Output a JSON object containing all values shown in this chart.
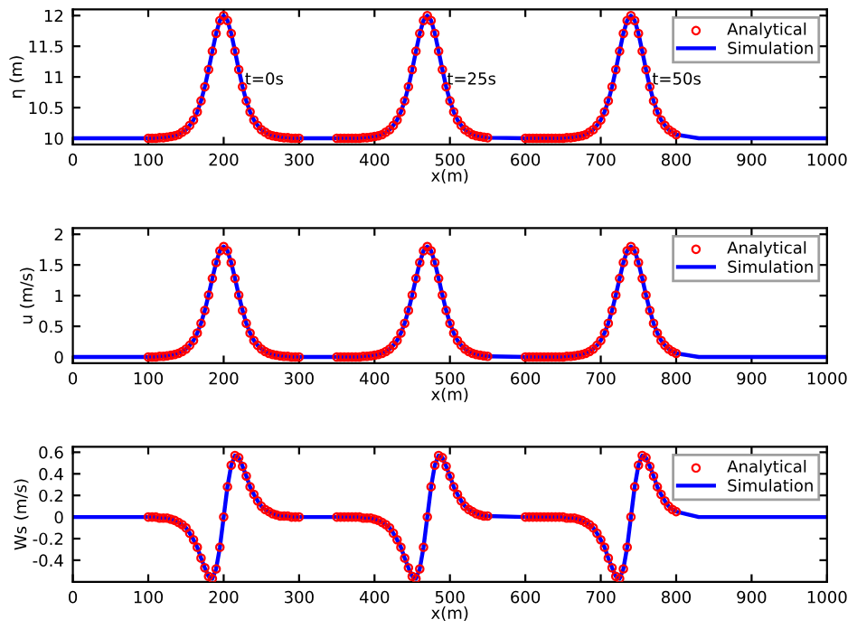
{
  "chart_data": [
    {
      "type": "line",
      "xlabel": "x(m)",
      "ylabel": "η (m)",
      "xlim": [
        0,
        1000
      ],
      "xticks": [
        0,
        100,
        200,
        300,
        400,
        500,
        600,
        700,
        800,
        900,
        1000
      ],
      "ylim": [
        9.9,
        12.1
      ],
      "yticks": [
        10,
        10.5,
        11,
        11.5,
        12
      ],
      "legend": "top right",
      "grid": false,
      "annotations": [
        {
          "text": "t=0s",
          "x": 228,
          "y": 10.95
        },
        {
          "text": "t=25s",
          "x": 496,
          "y": 10.95
        },
        {
          "text": "t=50s",
          "x": 768,
          "y": 10.95
        }
      ],
      "series": [
        {
          "name": "Analytical",
          "type": "scatter",
          "color": "#ff0000",
          "marker": "circle",
          "x": [
            100,
            105,
            110,
            115,
            120,
            125,
            130,
            135,
            140,
            145,
            150,
            155,
            160,
            165,
            170,
            175,
            180,
            185,
            190,
            195,
            200,
            205,
            210,
            215,
            220,
            225,
            230,
            235,
            240,
            245,
            250,
            255,
            260,
            265,
            270,
            275,
            280,
            285,
            290,
            295,
            300,
            350,
            355,
            360,
            365,
            370,
            375,
            380,
            385,
            390,
            395,
            400,
            405,
            410,
            415,
            420,
            425,
            430,
            435,
            440,
            445,
            450,
            455,
            460,
            465,
            470,
            475,
            480,
            485,
            490,
            495,
            500,
            505,
            510,
            515,
            520,
            525,
            530,
            535,
            540,
            545,
            550,
            600,
            605,
            610,
            615,
            620,
            625,
            630,
            635,
            640,
            645,
            650,
            655,
            660,
            665,
            670,
            675,
            680,
            685,
            690,
            695,
            700,
            705,
            710,
            715,
            720,
            725,
            730,
            735,
            740,
            745,
            750,
            755,
            760,
            765,
            770,
            775,
            780,
            785,
            790,
            795,
            800
          ],
          "values": [
            10.0,
            10.0,
            10.0,
            10.01,
            10.01,
            10.02,
            10.03,
            10.04,
            10.06,
            10.1,
            10.14,
            10.21,
            10.3,
            10.43,
            10.61,
            10.84,
            11.12,
            11.42,
            11.71,
            11.92,
            12.0,
            11.92,
            11.71,
            11.42,
            11.12,
            10.84,
            10.61,
            10.43,
            10.3,
            10.21,
            10.14,
            10.1,
            10.06,
            10.04,
            10.03,
            10.02,
            10.01,
            10.01,
            10.0,
            10.0,
            10.0,
            10.0,
            10.0,
            10.0,
            10.0,
            10.0,
            10.0,
            10.0,
            10.01,
            10.01,
            10.02,
            10.03,
            10.04,
            10.06,
            10.1,
            10.14,
            10.21,
            10.3,
            10.43,
            10.61,
            10.84,
            11.12,
            11.42,
            11.71,
            11.92,
            12.0,
            11.92,
            11.71,
            11.42,
            11.12,
            10.84,
            10.61,
            10.43,
            10.3,
            10.21,
            10.14,
            10.1,
            10.06,
            10.04,
            10.03,
            10.02,
            10.01,
            10.0,
            10.0,
            10.0,
            10.0,
            10.0,
            10.0,
            10.0,
            10.0,
            10.0,
            10.0,
            10.0,
            10.01,
            10.01,
            10.02,
            10.03,
            10.04,
            10.06,
            10.1,
            10.14,
            10.21,
            10.3,
            10.43,
            10.61,
            10.84,
            11.12,
            11.42,
            11.71,
            11.92,
            12.0,
            11.92,
            11.71,
            11.42,
            11.12,
            10.84,
            10.61,
            10.43,
            10.3,
            10.21,
            10.14,
            10.1,
            10.06
          ]
        },
        {
          "name": "Simulation",
          "color": "#0000ff",
          "line_style": "solid",
          "x": [
            0,
            100,
            105,
            110,
            115,
            120,
            125,
            130,
            135,
            140,
            145,
            150,
            155,
            160,
            165,
            170,
            175,
            180,
            185,
            190,
            195,
            200,
            205,
            210,
            215,
            220,
            225,
            230,
            235,
            240,
            245,
            250,
            255,
            260,
            265,
            270,
            275,
            280,
            285,
            290,
            295,
            300,
            350,
            355,
            360,
            365,
            370,
            375,
            380,
            385,
            390,
            395,
            400,
            405,
            410,
            415,
            420,
            425,
            430,
            435,
            440,
            445,
            450,
            455,
            460,
            465,
            470,
            475,
            480,
            485,
            490,
            495,
            500,
            505,
            510,
            515,
            520,
            525,
            530,
            535,
            540,
            545,
            550,
            600,
            605,
            610,
            615,
            620,
            625,
            630,
            635,
            640,
            645,
            650,
            655,
            660,
            665,
            670,
            675,
            680,
            685,
            690,
            695,
            700,
            705,
            710,
            715,
            720,
            725,
            730,
            735,
            740,
            745,
            750,
            755,
            760,
            765,
            770,
            775,
            780,
            785,
            790,
            795,
            800,
            830,
            1000
          ],
          "values": [
            10.0,
            10.0,
            10.0,
            10.0,
            10.01,
            10.01,
            10.02,
            10.03,
            10.04,
            10.06,
            10.1,
            10.14,
            10.21,
            10.3,
            10.43,
            10.61,
            10.84,
            11.12,
            11.42,
            11.71,
            11.92,
            12.0,
            11.92,
            11.71,
            11.42,
            11.12,
            10.84,
            10.61,
            10.43,
            10.3,
            10.21,
            10.14,
            10.1,
            10.06,
            10.04,
            10.03,
            10.02,
            10.01,
            10.01,
            10.0,
            10.0,
            10.0,
            10.0,
            10.0,
            10.0,
            10.0,
            10.0,
            10.0,
            10.0,
            10.01,
            10.01,
            10.02,
            10.03,
            10.04,
            10.06,
            10.1,
            10.14,
            10.21,
            10.3,
            10.43,
            10.61,
            10.84,
            11.12,
            11.42,
            11.71,
            11.92,
            12.0,
            11.92,
            11.71,
            11.42,
            11.12,
            10.84,
            10.61,
            10.43,
            10.3,
            10.21,
            10.14,
            10.1,
            10.06,
            10.04,
            10.03,
            10.02,
            10.01,
            10.0,
            10.0,
            10.0,
            10.0,
            10.0,
            10.0,
            10.0,
            10.0,
            10.0,
            10.0,
            10.0,
            10.01,
            10.01,
            10.02,
            10.03,
            10.04,
            10.06,
            10.1,
            10.14,
            10.21,
            10.3,
            10.43,
            10.61,
            10.84,
            11.12,
            11.42,
            11.71,
            11.92,
            12.0,
            11.92,
            11.71,
            11.42,
            11.12,
            10.84,
            10.61,
            10.43,
            10.3,
            10.21,
            10.14,
            10.1,
            10.06,
            10.0,
            10.0
          ]
        }
      ]
    },
    {
      "type": "line",
      "xlabel": "x(m)",
      "ylabel": "u (m/s)",
      "xlim": [
        0,
        1000
      ],
      "xticks": [
        0,
        100,
        200,
        300,
        400,
        500,
        600,
        700,
        800,
        900,
        1000
      ],
      "ylim": [
        -0.1,
        2.1
      ],
      "yticks": [
        0,
        0.5,
        1,
        1.5,
        2
      ],
      "legend": "top right",
      "grid": false,
      "series": [
        {
          "name": "Analytical",
          "type": "scatter",
          "color": "#ff0000",
          "marker": "circle",
          "x": [
            100,
            105,
            110,
            115,
            120,
            125,
            130,
            135,
            140,
            145,
            150,
            155,
            160,
            165,
            170,
            175,
            180,
            185,
            190,
            195,
            200,
            205,
            210,
            215,
            220,
            225,
            230,
            235,
            240,
            245,
            250,
            255,
            260,
            265,
            270,
            275,
            280,
            285,
            290,
            295,
            300,
            350,
            355,
            360,
            365,
            370,
            375,
            380,
            385,
            390,
            395,
            400,
            405,
            410,
            415,
            420,
            425,
            430,
            435,
            440,
            445,
            450,
            455,
            460,
            465,
            470,
            475,
            480,
            485,
            490,
            495,
            500,
            505,
            510,
            515,
            520,
            525,
            530,
            535,
            540,
            545,
            550,
            600,
            605,
            610,
            615,
            620,
            625,
            630,
            635,
            640,
            645,
            650,
            655,
            660,
            665,
            670,
            675,
            680,
            685,
            690,
            695,
            700,
            705,
            710,
            715,
            720,
            725,
            730,
            735,
            740,
            745,
            750,
            755,
            760,
            765,
            770,
            775,
            780,
            785,
            790,
            795,
            800
          ],
          "values": [
            0,
            0,
            0,
            0.01,
            0.01,
            0.02,
            0.03,
            0.04,
            0.06,
            0.09,
            0.13,
            0.19,
            0.27,
            0.39,
            0.55,
            0.76,
            1.01,
            1.28,
            1.54,
            1.73,
            1.8,
            1.73,
            1.54,
            1.28,
            1.01,
            0.76,
            0.55,
            0.39,
            0.27,
            0.19,
            0.13,
            0.09,
            0.06,
            0.04,
            0.03,
            0.02,
            0.01,
            0.01,
            0,
            0,
            0,
            0,
            0,
            0,
            0,
            0,
            0,
            0,
            0.01,
            0.01,
            0.02,
            0.03,
            0.04,
            0.06,
            0.09,
            0.13,
            0.19,
            0.27,
            0.39,
            0.55,
            0.76,
            1.01,
            1.28,
            1.54,
            1.73,
            1.8,
            1.73,
            1.54,
            1.28,
            1.01,
            0.76,
            0.55,
            0.39,
            0.27,
            0.19,
            0.13,
            0.09,
            0.06,
            0.04,
            0.03,
            0.02,
            0.01,
            0,
            0,
            0,
            0,
            0,
            0,
            0,
            0,
            0,
            0,
            0,
            0.01,
            0.01,
            0.02,
            0.03,
            0.04,
            0.06,
            0.09,
            0.13,
            0.19,
            0.27,
            0.39,
            0.55,
            0.76,
            1.01,
            1.28,
            1.54,
            1.73,
            1.8,
            1.73,
            1.54,
            1.28,
            1.01,
            0.76,
            0.55,
            0.39,
            0.27,
            0.19,
            0.13,
            0.09,
            0.06
          ]
        },
        {
          "name": "Simulation",
          "color": "#0000ff",
          "line_style": "solid",
          "x": [
            0,
            100,
            105,
            110,
            115,
            120,
            125,
            130,
            135,
            140,
            145,
            150,
            155,
            160,
            165,
            170,
            175,
            180,
            185,
            190,
            195,
            200,
            205,
            210,
            215,
            220,
            225,
            230,
            235,
            240,
            245,
            250,
            255,
            260,
            265,
            270,
            275,
            280,
            285,
            290,
            295,
            300,
            350,
            355,
            360,
            365,
            370,
            375,
            380,
            385,
            390,
            395,
            400,
            405,
            410,
            415,
            420,
            425,
            430,
            435,
            440,
            445,
            450,
            455,
            460,
            465,
            470,
            475,
            480,
            485,
            490,
            495,
            500,
            505,
            510,
            515,
            520,
            525,
            530,
            535,
            540,
            545,
            550,
            600,
            605,
            610,
            615,
            620,
            625,
            630,
            635,
            640,
            645,
            650,
            655,
            660,
            665,
            670,
            675,
            680,
            685,
            690,
            695,
            700,
            705,
            710,
            715,
            720,
            725,
            730,
            735,
            740,
            745,
            750,
            755,
            760,
            765,
            770,
            775,
            780,
            785,
            790,
            795,
            800,
            830,
            1000
          ],
          "values": [
            0,
            0,
            0,
            0,
            0.01,
            0.01,
            0.02,
            0.03,
            0.04,
            0.06,
            0.09,
            0.13,
            0.19,
            0.27,
            0.39,
            0.55,
            0.76,
            1.01,
            1.28,
            1.54,
            1.73,
            1.8,
            1.73,
            1.54,
            1.28,
            1.01,
            0.76,
            0.55,
            0.39,
            0.27,
            0.19,
            0.13,
            0.09,
            0.06,
            0.04,
            0.03,
            0.02,
            0.01,
            0.01,
            0,
            0,
            0,
            0,
            0,
            0,
            0,
            0,
            0,
            0,
            0.01,
            0.01,
            0.02,
            0.03,
            0.04,
            0.06,
            0.09,
            0.13,
            0.19,
            0.27,
            0.39,
            0.55,
            0.76,
            1.01,
            1.28,
            1.54,
            1.73,
            1.8,
            1.73,
            1.54,
            1.28,
            1.01,
            0.76,
            0.55,
            0.39,
            0.27,
            0.19,
            0.13,
            0.09,
            0.06,
            0.04,
            0.03,
            0.02,
            0.01,
            0,
            0,
            0,
            0,
            0,
            0,
            0,
            0,
            0,
            0,
            0,
            0.01,
            0.01,
            0.02,
            0.03,
            0.04,
            0.06,
            0.09,
            0.13,
            0.19,
            0.27,
            0.39,
            0.55,
            0.76,
            1.01,
            1.28,
            1.54,
            1.73,
            1.8,
            1.73,
            1.54,
            1.28,
            1.01,
            0.76,
            0.55,
            0.39,
            0.27,
            0.19,
            0.13,
            0.09,
            0.06,
            0,
            0
          ]
        }
      ]
    },
    {
      "type": "line",
      "xlabel": "x(m)",
      "ylabel": "Ws (m/s)",
      "xlim": [
        0,
        1000
      ],
      "xticks": [
        0,
        100,
        200,
        300,
        400,
        500,
        600,
        700,
        800,
        900,
        1000
      ],
      "ylim": [
        -0.6,
        0.65
      ],
      "yticks": [
        -0.4,
        -0.2,
        0,
        0.2,
        0.4,
        0.6
      ],
      "legend": "top right",
      "grid": false,
      "series": [
        {
          "name": "Analytical",
          "type": "scatter",
          "color": "#ff0000",
          "marker": "circle",
          "x": [
            100,
            105,
            110,
            115,
            120,
            125,
            130,
            135,
            140,
            145,
            150,
            155,
            160,
            165,
            170,
            175,
            180,
            185,
            190,
            195,
            200,
            205,
            210,
            215,
            220,
            225,
            230,
            235,
            240,
            245,
            250,
            255,
            260,
            265,
            270,
            275,
            280,
            285,
            290,
            295,
            300,
            350,
            355,
            360,
            365,
            370,
            375,
            380,
            385,
            390,
            395,
            400,
            405,
            410,
            415,
            420,
            425,
            430,
            435,
            440,
            445,
            450,
            455,
            460,
            465,
            470,
            475,
            480,
            485,
            490,
            495,
            500,
            505,
            510,
            515,
            520,
            525,
            530,
            535,
            540,
            545,
            550,
            600,
            605,
            610,
            615,
            620,
            625,
            630,
            635,
            640,
            645,
            650,
            655,
            660,
            665,
            670,
            675,
            680,
            685,
            690,
            695,
            700,
            705,
            710,
            715,
            720,
            725,
            730,
            735,
            740,
            745,
            750,
            755,
            760,
            765,
            770,
            775,
            780,
            785,
            790,
            795,
            800
          ],
          "values": [
            0,
            0,
            0,
            -0.01,
            -0.01,
            -0.01,
            -0.02,
            -0.03,
            -0.05,
            -0.07,
            -0.1,
            -0.15,
            -0.21,
            -0.28,
            -0.38,
            -0.47,
            -0.55,
            -0.57,
            -0.48,
            -0.28,
            0,
            0.28,
            0.48,
            0.57,
            0.55,
            0.47,
            0.38,
            0.28,
            0.21,
            0.15,
            0.1,
            0.07,
            0.05,
            0.03,
            0.02,
            0.01,
            0.01,
            0.01,
            0,
            0,
            0,
            0,
            0,
            0,
            0,
            0,
            0,
            0,
            -0.01,
            -0.01,
            -0.01,
            -0.02,
            -0.03,
            -0.05,
            -0.07,
            -0.1,
            -0.15,
            -0.21,
            -0.28,
            -0.38,
            -0.47,
            -0.55,
            -0.57,
            -0.48,
            -0.28,
            0,
            0.28,
            0.48,
            0.57,
            0.55,
            0.47,
            0.38,
            0.28,
            0.21,
            0.15,
            0.1,
            0.07,
            0.05,
            0.03,
            0.02,
            0.01,
            0.01,
            0,
            0,
            0,
            0,
            0,
            0,
            0,
            0,
            0,
            0,
            0,
            -0.01,
            -0.01,
            -0.01,
            -0.02,
            -0.03,
            -0.05,
            -0.07,
            -0.1,
            -0.15,
            -0.21,
            -0.28,
            -0.38,
            -0.47,
            -0.55,
            -0.57,
            -0.48,
            -0.28,
            0,
            0.28,
            0.48,
            0.57,
            0.55,
            0.47,
            0.38,
            0.28,
            0.21,
            0.15,
            0.1,
            0.07,
            0.05
          ]
        },
        {
          "name": "Simulation",
          "color": "#0000ff",
          "line_style": "solid",
          "x": [
            0,
            100,
            105,
            110,
            115,
            120,
            125,
            130,
            135,
            140,
            145,
            150,
            155,
            160,
            165,
            170,
            175,
            180,
            185,
            190,
            195,
            200,
            205,
            210,
            215,
            220,
            225,
            230,
            235,
            240,
            245,
            250,
            255,
            260,
            265,
            270,
            275,
            280,
            285,
            290,
            295,
            300,
            350,
            355,
            360,
            365,
            370,
            375,
            380,
            385,
            390,
            395,
            400,
            405,
            410,
            415,
            420,
            425,
            430,
            435,
            440,
            445,
            450,
            455,
            460,
            465,
            470,
            475,
            480,
            485,
            490,
            495,
            500,
            505,
            510,
            515,
            520,
            525,
            530,
            535,
            540,
            545,
            550,
            600,
            605,
            610,
            615,
            620,
            625,
            630,
            635,
            640,
            645,
            650,
            655,
            660,
            665,
            670,
            675,
            680,
            685,
            690,
            695,
            700,
            705,
            710,
            715,
            720,
            725,
            730,
            735,
            740,
            745,
            750,
            755,
            760,
            765,
            770,
            775,
            780,
            785,
            790,
            795,
            800,
            830,
            1000
          ],
          "values": [
            0,
            0,
            0,
            0,
            -0.01,
            -0.01,
            -0.01,
            -0.02,
            -0.03,
            -0.05,
            -0.07,
            -0.1,
            -0.15,
            -0.21,
            -0.28,
            -0.38,
            -0.47,
            -0.55,
            -0.57,
            -0.48,
            -0.28,
            0,
            0.28,
            0.48,
            0.57,
            0.55,
            0.47,
            0.38,
            0.28,
            0.21,
            0.15,
            0.1,
            0.07,
            0.05,
            0.03,
            0.02,
            0.01,
            0.01,
            0.01,
            0,
            0,
            0,
            0,
            0,
            0,
            0,
            0,
            0,
            0,
            -0.01,
            -0.01,
            -0.01,
            -0.02,
            -0.03,
            -0.05,
            -0.07,
            -0.1,
            -0.15,
            -0.21,
            -0.28,
            -0.38,
            -0.47,
            -0.55,
            -0.57,
            -0.48,
            -0.28,
            0,
            0.28,
            0.48,
            0.57,
            0.55,
            0.47,
            0.38,
            0.28,
            0.21,
            0.15,
            0.1,
            0.07,
            0.05,
            0.03,
            0.02,
            0.01,
            0.01,
            0,
            0,
            0,
            0,
            0,
            0,
            0,
            0,
            0,
            0,
            0,
            -0.01,
            -0.01,
            -0.01,
            -0.02,
            -0.03,
            -0.05,
            -0.07,
            -0.1,
            -0.15,
            -0.21,
            -0.28,
            -0.38,
            -0.47,
            -0.55,
            -0.57,
            -0.48,
            -0.28,
            0,
            0.28,
            0.48,
            0.57,
            0.55,
            0.47,
            0.38,
            0.28,
            0.21,
            0.15,
            0.1,
            0.07,
            0.05,
            0,
            0
          ]
        }
      ]
    }
  ]
}
